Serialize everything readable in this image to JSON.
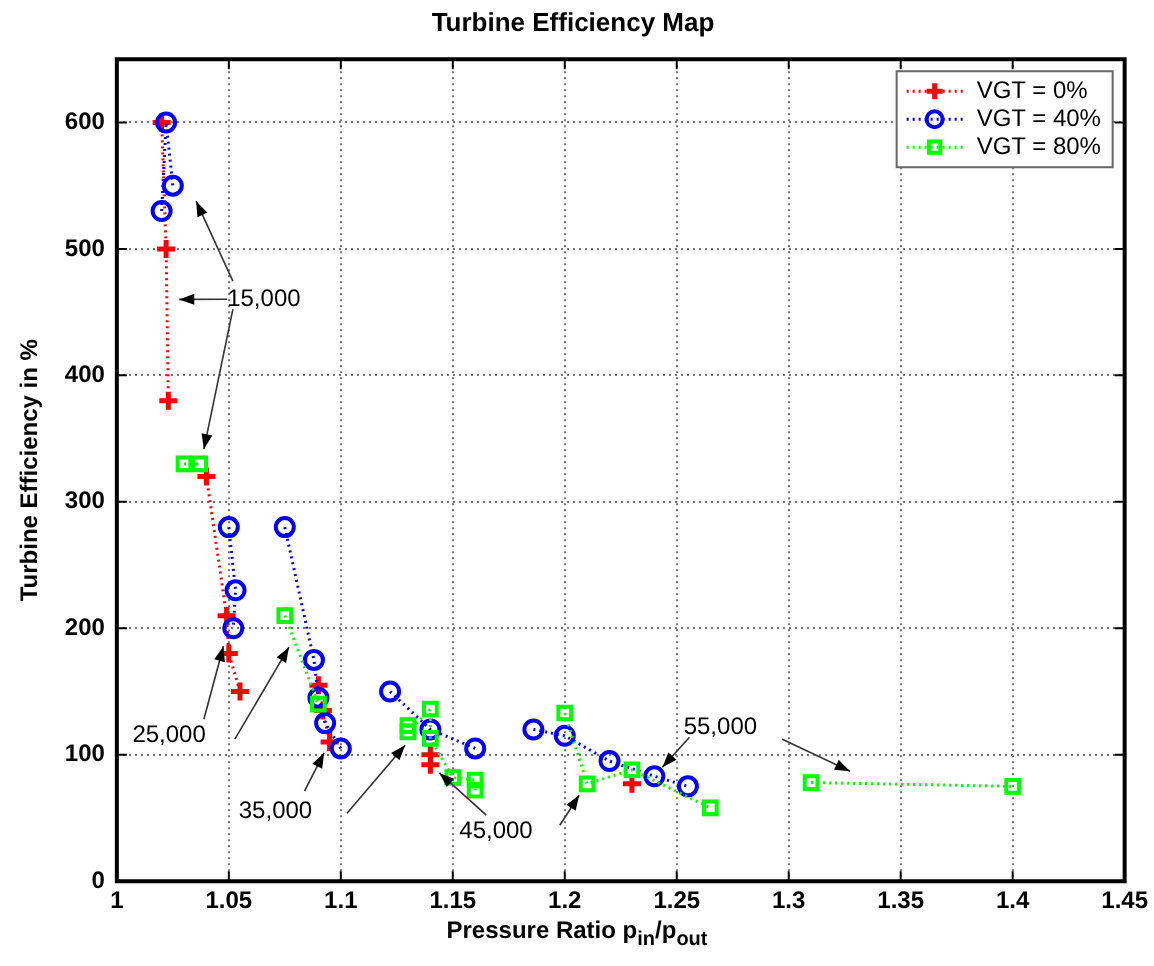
{
  "chart_data": {
    "type": "line",
    "title": "Turbine Efficiency Map",
    "xlabel": "Pressure Ratio p$_{in}$/p$_{out}$",
    "ylabel": "Turbine Efficiency in %",
    "xlim": [
      1,
      1.45
    ],
    "xticks": [
      1,
      1.05,
      1.1,
      1.15,
      1.2,
      1.25,
      1.3,
      1.35,
      1.4,
      1.45
    ],
    "ylim": [
      0,
      650
    ],
    "yticks": [
      0,
      100,
      200,
      300,
      400,
      500,
      600
    ],
    "grid": true,
    "legend": "top right",
    "line_style": "dotted",
    "series": [
      {
        "name": "VGT = 0%",
        "color": "#ff0000",
        "marker": "cross",
        "x": [
          1.02,
          1.022,
          1.023,
          null,
          1.04,
          1.049,
          1.05,
          1.055,
          null,
          1.09,
          1.092,
          1.095,
          null,
          1.14,
          1.14,
          null,
          1.23
        ],
        "values": [
          600,
          500,
          380,
          null,
          320,
          210,
          180,
          150,
          null,
          155,
          135,
          110,
          null,
          100,
          92,
          null,
          77
        ]
      },
      {
        "name": "VGT = 40%",
        "color": "#0000ff",
        "marker": "circle",
        "x": [
          1.02,
          1.022,
          1.025,
          null,
          1.05,
          1.053,
          1.052,
          null,
          1.075,
          1.088,
          1.09,
          1.093,
          1.1,
          null,
          1.122,
          1.14,
          1.16,
          null,
          1.186,
          1.2,
          1.22,
          1.24,
          1.255
        ],
        "values": [
          530,
          600,
          550,
          null,
          280,
          230,
          200,
          null,
          280,
          175,
          145,
          125,
          105,
          null,
          150,
          120,
          105,
          null,
          120,
          115,
          95,
          83,
          75
        ]
      },
      {
        "name": "VGT = 80%",
        "color": "#00ff00",
        "marker": "square",
        "x": [
          1.03,
          1.037,
          null,
          1.075,
          1.09,
          null,
          1.13,
          1.13,
          1.14,
          1.14,
          1.15,
          1.16,
          1.16,
          null,
          1.2,
          1.21,
          1.23,
          1.265,
          null,
          1.31,
          1.4
        ],
        "values": [
          330,
          330,
          null,
          210,
          140,
          null,
          123,
          118,
          136,
          113,
          82,
          80,
          72,
          null,
          133,
          77,
          88,
          58,
          null,
          78,
          75
        ]
      }
    ],
    "annotations": [
      {
        "text": "15,000",
        "x": 1.0225,
        "y": 460
      },
      {
        "text": "25,000",
        "x": 1.049,
        "y": 195
      },
      {
        "text": "35,000",
        "x": 1.095,
        "y": 110
      },
      {
        "text": "45,000",
        "x": 1.14,
        "y": 92
      },
      {
        "text": "55,000",
        "x": 1.24,
        "y": 83
      }
    ]
  }
}
